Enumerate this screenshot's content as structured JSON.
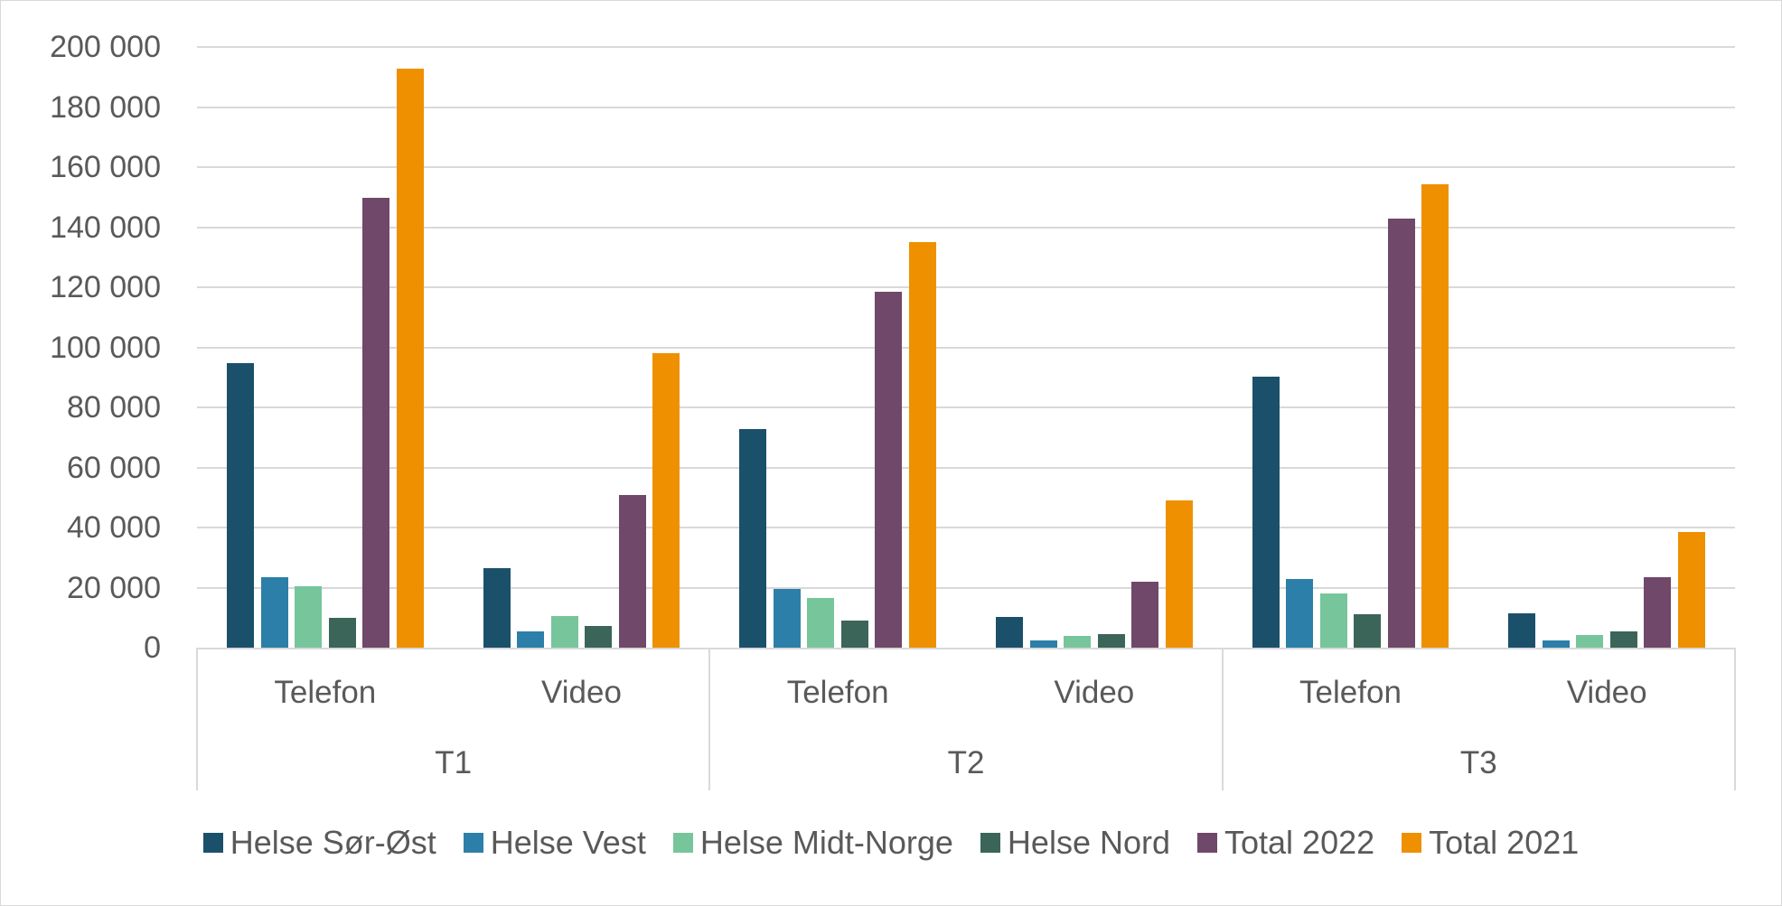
{
  "chart_data": {
    "type": "bar",
    "title": "",
    "xlabel": "",
    "ylabel": "",
    "ylim": [
      0,
      200000
    ],
    "yticks": [
      0,
      20000,
      40000,
      60000,
      80000,
      100000,
      120000,
      140000,
      160000,
      180000,
      200000
    ],
    "ytick_labels": [
      "0",
      "20 000",
      "40 000",
      "60 000",
      "80 000",
      "100 000",
      "120 000",
      "140 000",
      "160 000",
      "180 000",
      "200 000"
    ],
    "grid": true,
    "legend_position": "bottom",
    "groups": [
      "T1",
      "T2",
      "T3"
    ],
    "subcategories": [
      "Telefon",
      "Video"
    ],
    "categories": [
      "T1 Telefon",
      "T1 Video",
      "T2 Telefon",
      "T2 Video",
      "T3 Telefon",
      "T3 Video"
    ],
    "series": [
      {
        "name": "Helse Sør-Øst",
        "color": "#1b506b",
        "values": [
          94600,
          26600,
          72800,
          10200,
          90300,
          11300
        ]
      },
      {
        "name": "Helse Vest",
        "color": "#2c7fa8",
        "values": [
          23600,
          5400,
          19500,
          2300,
          22900,
          2500
        ]
      },
      {
        "name": "Helse Midt-Norge",
        "color": "#77c59b",
        "values": [
          20500,
          10600,
          16400,
          4000,
          17900,
          4100
        ]
      },
      {
        "name": "Helse Nord",
        "color": "#3b6558",
        "values": [
          9900,
          7300,
          8900,
          4600,
          11000,
          5300
        ]
      },
      {
        "name": "Total 2022",
        "color": "#704869",
        "values": [
          149700,
          50700,
          118400,
          21900,
          143000,
          23600
        ]
      },
      {
        "name": "Total 2021",
        "color": "#ee9000",
        "values": [
          192700,
          98100,
          135100,
          48900,
          154400,
          38400
        ]
      }
    ]
  },
  "axis": {
    "sub_labels": [
      "Telefon",
      "Video",
      "Telefon",
      "Video",
      "Telefon",
      "Video"
    ],
    "group_labels": [
      "T1",
      "T2",
      "T3"
    ]
  },
  "legend": {
    "items": [
      {
        "label": "Helse Sør-Øst",
        "color": "#1b506b"
      },
      {
        "label": "Helse Vest",
        "color": "#2c7fa8"
      },
      {
        "label": "Helse Midt-Norge",
        "color": "#77c59b"
      },
      {
        "label": "Helse Nord",
        "color": "#3b6558"
      },
      {
        "label": "Total 2022",
        "color": "#704869"
      },
      {
        "label": "Total 2021",
        "color": "#ee9000"
      }
    ]
  }
}
